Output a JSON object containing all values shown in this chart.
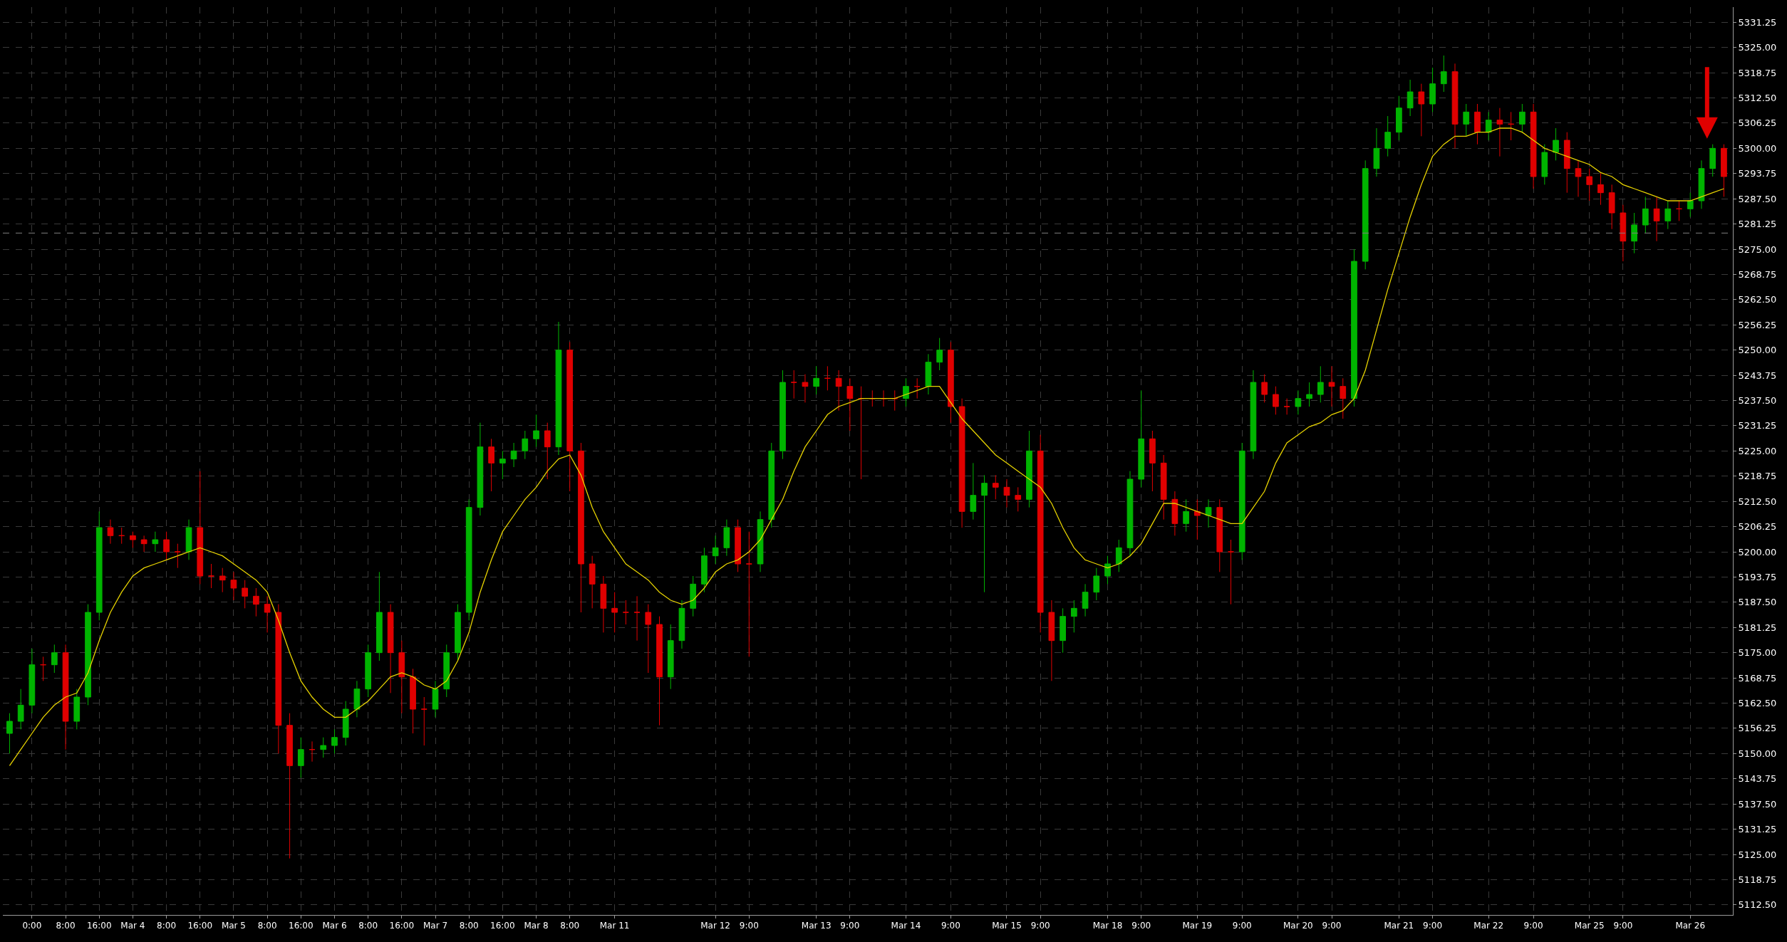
{
  "chart_data": {
    "type": "candlestick",
    "categories": [
      null,
      null,
      "0:00",
      null,
      null,
      "8:00",
      null,
      null,
      "16:00",
      null,
      null,
      "Mar 4",
      null,
      null,
      "8:00",
      null,
      null,
      "16:00",
      null,
      null,
      "Mar 5",
      null,
      null,
      "8:00",
      null,
      null,
      "16:00",
      null,
      null,
      "Mar 6",
      null,
      null,
      "8:00",
      null,
      null,
      "16:00",
      null,
      null,
      "Mar 7",
      null,
      null,
      "8:00",
      null,
      null,
      "16:00",
      null,
      null,
      "Mar 8",
      null,
      null,
      "8:00",
      null,
      null,
      null,
      "Mar 11",
      null,
      null,
      null,
      null,
      null,
      null,
      null,
      null,
      "Mar 12",
      null,
      null,
      "9:00",
      null,
      null,
      null,
      null,
      null,
      "Mar 13",
      null,
      null,
      "9:00",
      null,
      null,
      null,
      null,
      "Mar 14",
      null,
      null,
      null,
      "9:00",
      null,
      null,
      null,
      null,
      "Mar 15",
      null,
      null,
      "9:00",
      null,
      null,
      null,
      null,
      null,
      "Mar 18",
      null,
      null,
      "9:00",
      null,
      null,
      null,
      null,
      "Mar 19",
      null,
      null,
      null,
      "9:00",
      null,
      null,
      null,
      null,
      "Mar 20",
      null,
      null,
      "9:00",
      null,
      null,
      null,
      null,
      null,
      "Mar 21",
      null,
      null,
      "9:00",
      null,
      null,
      null,
      null,
      "Mar 22",
      null,
      null,
      null,
      "9:00",
      null,
      null,
      null,
      null,
      "Mar 25",
      null,
      null,
      "9:00",
      null,
      null,
      null,
      null,
      null,
      "Mar 26",
      null,
      null,
      null
    ],
    "series": [
      {
        "type": "line",
        "color": "#e6d200",
        "values": [
          5147,
          5151,
          5155,
          5159,
          5162,
          5164,
          5165,
          5170,
          5178,
          5185,
          5190,
          5194,
          5196,
          5197,
          5198,
          5199,
          5200,
          5201,
          5200,
          5199,
          5197,
          5195,
          5193,
          5190,
          5183,
          5175,
          5168,
          5164,
          5161,
          5159,
          5159,
          5161,
          5163,
          5166,
          5169,
          5170,
          5169,
          5167,
          5166,
          5168,
          5173,
          5180,
          5190,
          5198,
          5205,
          5209,
          5213,
          5216,
          5220,
          5223,
          5224,
          5219,
          5211,
          5205,
          5201,
          5197,
          5195,
          5193,
          5190,
          5188,
          5187,
          5188,
          5191,
          5195,
          5197,
          5198,
          5200,
          5203,
          5208,
          5213,
          5220,
          5226,
          5230,
          5234,
          5236,
          5237,
          5238,
          5238,
          5238,
          5238,
          5239,
          5240,
          5241,
          5241,
          5237,
          5233,
          5230,
          5227,
          5224,
          5222,
          5220,
          5218,
          5216,
          5212,
          5206,
          5201,
          5198,
          5197,
          5196,
          5197,
          5199,
          5202,
          5207,
          5212,
          5212,
          5211,
          5210,
          5209,
          5208,
          5207,
          5207,
          5211,
          5215,
          5222,
          5227,
          5229,
          5231,
          5232,
          5234,
          5235,
          5238,
          5245,
          5255,
          5265,
          5274,
          5283,
          5291,
          5298,
          5301,
          5303,
          5303,
          5304,
          5304,
          5305,
          5305,
          5304,
          5302,
          5300,
          5299,
          5298,
          5297,
          5296,
          5294,
          5293,
          5291,
          5290,
          5289,
          5288,
          5287,
          5287,
          5287,
          5288,
          5289,
          5290
        ]
      },
      {
        "type": "candlestick",
        "colors": [
          "#00b400",
          "#00b400",
          "#00b400",
          "#e00000",
          "#00b400",
          "#e00000",
          "#00b400",
          "#00b400",
          "#00b400",
          "#e00000",
          "#e00000",
          "#e00000",
          "#e00000",
          "#00b400",
          "#e00000",
          "#e00000",
          "#00b400",
          "#e00000",
          "#e00000",
          "#e00000",
          "#e00000",
          "#e00000",
          "#e00000",
          "#e00000",
          "#e00000",
          "#e00000",
          "#00b400",
          "#e00000",
          "#00b400",
          "#00b400",
          "#00b400",
          "#00b400",
          "#00b400",
          "#00b400",
          "#e00000",
          "#e00000",
          "#e00000",
          "#e00000",
          "#00b400",
          "#00b400",
          "#00b400",
          "#00b400",
          "#00b400",
          "#e00000",
          "#00b400",
          "#00b400",
          "#00b400",
          "#00b400",
          "#e00000",
          "#00b400",
          "#e00000",
          "#e00000",
          "#e00000",
          "#e00000",
          "#e00000",
          "#e00000",
          "#e00000",
          "#e00000",
          "#e00000",
          "#00b400",
          "#00b400",
          "#00b400",
          "#00b400",
          "#00b400",
          "#00b400",
          "#e00000",
          "#e00000",
          "#00b400",
          "#00b400",
          "#00b400",
          "#e00000",
          "#e00000",
          "#00b400",
          "#e00000",
          "#e00000",
          "#e00000",
          "#e00000",
          "#e00000",
          "#e00000",
          "#e00000",
          "#00b400",
          "#e00000",
          "#00b400",
          "#00b400",
          "#e00000",
          "#e00000",
          "#00b400",
          "#00b400",
          "#e00000",
          "#e00000",
          "#e00000",
          "#00b400",
          "#e00000",
          "#e00000",
          "#00b400",
          "#00b400",
          "#00b400",
          "#00b400",
          "#00b400",
          "#00b400",
          "#00b400",
          "#00b400",
          "#e00000",
          "#e00000",
          "#e00000",
          "#00b400",
          "#e00000",
          "#00b400",
          "#e00000",
          "#e00000",
          "#00b400",
          "#00b400",
          "#e00000",
          "#e00000",
          "#e00000",
          "#00b400",
          "#00b400",
          "#00b400",
          "#e00000",
          "#e00000",
          "#00b400",
          "#00b400",
          "#00b400",
          "#00b400",
          "#00b400",
          "#00b400",
          "#e00000",
          "#00b400",
          "#00b400",
          "#e00000",
          "#00b400",
          "#e00000",
          "#00b400",
          "#e00000",
          "#e00000",
          "#00b400",
          "#e00000",
          "#00b400",
          "#00b400",
          "#e00000",
          "#e00000",
          "#e00000",
          "#e00000",
          "#e00000",
          "#e00000",
          "#00b400",
          "#00b400",
          "#e00000",
          "#00b400",
          "#e00000",
          "#00b400",
          "#00b400",
          "#00b400",
          "#e00000"
        ],
        "ohlc": [
          [
            5155,
            5160,
            5150,
            5158
          ],
          [
            5158,
            5166,
            5156,
            5162
          ],
          [
            5162,
            5176,
            5160,
            5172
          ],
          [
            5172,
            5174,
            5168,
            5172
          ],
          [
            5172,
            5177,
            5170,
            5175
          ],
          [
            5175,
            5177,
            5151,
            5158
          ],
          [
            5158,
            5166,
            5156,
            5164
          ],
          [
            5164,
            5187,
            5162,
            5185
          ],
          [
            5185,
            5210,
            5183,
            5206
          ],
          [
            5206,
            5208,
            5202,
            5204
          ],
          [
            5204,
            5206,
            5202,
            5204
          ],
          [
            5204,
            5205,
            5201,
            5203
          ],
          [
            5203,
            5204,
            5200,
            5202
          ],
          [
            5202,
            5205,
            5200,
            5203
          ],
          [
            5203,
            5205,
            5198,
            5200
          ],
          [
            5200,
            5202,
            5196,
            5200
          ],
          [
            5200,
            5208,
            5198,
            5206
          ],
          [
            5206,
            5220,
            5192,
            5194
          ],
          [
            5194,
            5197,
            5191,
            5194
          ],
          [
            5194,
            5196,
            5190,
            5193
          ],
          [
            5193,
            5195,
            5188,
            5191
          ],
          [
            5191,
            5193,
            5186,
            5189
          ],
          [
            5189,
            5191,
            5184,
            5187
          ],
          [
            5187,
            5189,
            5180,
            5185
          ],
          [
            5185,
            5187,
            5150,
            5157
          ],
          [
            5157,
            5160,
            5124,
            5147
          ],
          [
            5147,
            5154,
            5144,
            5151
          ],
          [
            5151,
            5153,
            5148,
            5151
          ],
          [
            5151,
            5154,
            5149,
            5152
          ],
          [
            5152,
            5156,
            5150,
            5154
          ],
          [
            5154,
            5163,
            5152,
            5161
          ],
          [
            5161,
            5168,
            5159,
            5166
          ],
          [
            5166,
            5177,
            5164,
            5175
          ],
          [
            5175,
            5195,
            5173,
            5185
          ],
          [
            5185,
            5187,
            5165,
            5175
          ],
          [
            5175,
            5178,
            5160,
            5169
          ],
          [
            5169,
            5171,
            5155,
            5161
          ],
          [
            5161,
            5164,
            5152,
            5161
          ],
          [
            5161,
            5168,
            5159,
            5166
          ],
          [
            5166,
            5177,
            5164,
            5175
          ],
          [
            5175,
            5187,
            5173,
            5185
          ],
          [
            5185,
            5213,
            5183,
            5211
          ],
          [
            5211,
            5232,
            5209,
            5226
          ],
          [
            5226,
            5228,
            5215,
            5222
          ],
          [
            5222,
            5225,
            5218,
            5223
          ],
          [
            5223,
            5227,
            5221,
            5225
          ],
          [
            5225,
            5230,
            5223,
            5228
          ],
          [
            5228,
            5234,
            5226,
            5230
          ],
          [
            5230,
            5232,
            5218,
            5226
          ],
          [
            5226,
            5257,
            5224,
            5250
          ],
          [
            5250,
            5252,
            5215,
            5225
          ],
          [
            5225,
            5227,
            5185,
            5197
          ],
          [
            5197,
            5199,
            5186,
            5192
          ],
          [
            5192,
            5194,
            5180,
            5186
          ],
          [
            5186,
            5190,
            5180,
            5185
          ],
          [
            5185,
            5188,
            5182,
            5185
          ],
          [
            5185,
            5189,
            5178,
            5185
          ],
          [
            5185,
            5187,
            5170,
            5182
          ],
          [
            5182,
            5184,
            5157,
            5169
          ],
          [
            5169,
            5182,
            5166,
            5178
          ],
          [
            5178,
            5188,
            5176,
            5186
          ],
          [
            5186,
            5194,
            5184,
            5192
          ],
          [
            5192,
            5201,
            5190,
            5199
          ],
          [
            5199,
            5204,
            5197,
            5201
          ],
          [
            5201,
            5208,
            5199,
            5206
          ],
          [
            5206,
            5208,
            5195,
            5197
          ],
          [
            5197,
            5205,
            5174,
            5197
          ],
          [
            5197,
            5210,
            5195,
            5208
          ],
          [
            5208,
            5227,
            5206,
            5225
          ],
          [
            5225,
            5245,
            5223,
            5242
          ],
          [
            5242,
            5245,
            5238,
            5242
          ],
          [
            5242,
            5244,
            5237,
            5241
          ],
          [
            5241,
            5246,
            5239,
            5243
          ],
          [
            5243,
            5246,
            5240,
            5243
          ],
          [
            5243,
            5245,
            5235,
            5241
          ],
          [
            5241,
            5243,
            5230,
            5238
          ],
          [
            5238,
            5241,
            5218,
            5238
          ],
          [
            5238,
            5240,
            5236,
            5238
          ],
          [
            5238,
            5240,
            5236,
            5238
          ],
          [
            5238,
            5240,
            5235,
            5238
          ],
          [
            5238,
            5243,
            5236,
            5241
          ],
          [
            5241,
            5243,
            5238,
            5241
          ],
          [
            5241,
            5249,
            5239,
            5247
          ],
          [
            5247,
            5253,
            5245,
            5250
          ],
          [
            5250,
            5252,
            5232,
            5236
          ],
          [
            5236,
            5238,
            5206,
            5210
          ],
          [
            5210,
            5222,
            5208,
            5214
          ],
          [
            5214,
            5219,
            5190,
            5217
          ],
          [
            5217,
            5219,
            5213,
            5216
          ],
          [
            5216,
            5218,
            5211,
            5214
          ],
          [
            5214,
            5216,
            5210,
            5213
          ],
          [
            5213,
            5230,
            5211,
            5225
          ],
          [
            5225,
            5229,
            5180,
            5185
          ],
          [
            5185,
            5188,
            5168,
            5178
          ],
          [
            5178,
            5186,
            5175,
            5184
          ],
          [
            5184,
            5188,
            5180,
            5186
          ],
          [
            5186,
            5192,
            5184,
            5190
          ],
          [
            5190,
            5196,
            5188,
            5194
          ],
          [
            5194,
            5199,
            5192,
            5197
          ],
          [
            5197,
            5203,
            5195,
            5201
          ],
          [
            5201,
            5220,
            5199,
            5218
          ],
          [
            5218,
            5240,
            5216,
            5228
          ],
          [
            5228,
            5230,
            5215,
            5222
          ],
          [
            5222,
            5224,
            5208,
            5213
          ],
          [
            5213,
            5215,
            5204,
            5207
          ],
          [
            5207,
            5213,
            5205,
            5210
          ],
          [
            5210,
            5213,
            5203,
            5209
          ],
          [
            5209,
            5213,
            5206,
            5211
          ],
          [
            5211,
            5213,
            5195,
            5200
          ],
          [
            5200,
            5203,
            5187,
            5200
          ],
          [
            5200,
            5227,
            5198,
            5225
          ],
          [
            5225,
            5245,
            5223,
            5242
          ],
          [
            5242,
            5244,
            5237,
            5239
          ],
          [
            5239,
            5241,
            5234,
            5236
          ],
          [
            5236,
            5238,
            5234,
            5236
          ],
          [
            5236,
            5240,
            5234,
            5238
          ],
          [
            5238,
            5242,
            5236,
            5239
          ],
          [
            5239,
            5246,
            5237,
            5242
          ],
          [
            5242,
            5246,
            5236,
            5241
          ],
          [
            5241,
            5243,
            5233,
            5238
          ],
          [
            5238,
            5275,
            5236,
            5272
          ],
          [
            5272,
            5297,
            5270,
            5295
          ],
          [
            5295,
            5305,
            5293,
            5300
          ],
          [
            5300,
            5308,
            5298,
            5304
          ],
          [
            5304,
            5313,
            5302,
            5310
          ],
          [
            5310,
            5317,
            5308,
            5314
          ],
          [
            5314,
            5316,
            5303,
            5311
          ],
          [
            5311,
            5320,
            5309,
            5316
          ],
          [
            5316,
            5323,
            5314,
            5319
          ],
          [
            5319,
            5321,
            5300,
            5306
          ],
          [
            5306,
            5311,
            5303,
            5309
          ],
          [
            5309,
            5311,
            5301,
            5304
          ],
          [
            5304,
            5309,
            5302,
            5307
          ],
          [
            5307,
            5310,
            5298,
            5306
          ],
          [
            5306,
            5309,
            5302,
            5306
          ],
          [
            5306,
            5311,
            5304,
            5309
          ],
          [
            5309,
            5311,
            5290,
            5293
          ],
          [
            5293,
            5301,
            5291,
            5299
          ],
          [
            5299,
            5305,
            5297,
            5302
          ],
          [
            5302,
            5304,
            5289,
            5295
          ],
          [
            5295,
            5297,
            5288,
            5293
          ],
          [
            5293,
            5295,
            5287,
            5291
          ],
          [
            5291,
            5294,
            5286,
            5289
          ],
          [
            5289,
            5291,
            5280,
            5284
          ],
          [
            5284,
            5286,
            5272,
            5277
          ],
          [
            5277,
            5284,
            5274,
            5281
          ],
          [
            5281,
            5288,
            5279,
            5285
          ],
          [
            5285,
            5288,
            5277,
            5282
          ],
          [
            5282,
            5287,
            5280,
            5285
          ],
          [
            5285,
            5287,
            5282,
            5285
          ],
          [
            5285,
            5289,
            5283,
            5287
          ],
          [
            5287,
            5297,
            5285,
            5295
          ],
          [
            5295,
            5301,
            5293,
            5300
          ],
          [
            5300,
            5301,
            5288,
            5293
          ]
        ]
      }
    ],
    "ylim": [
      5110,
      5335
    ],
    "yticks": [
      {
        "value": 5112.5,
        "label": "5112.50"
      },
      {
        "value": 5118.75,
        "label": "5118.75"
      },
      {
        "value": 5125,
        "label": "5125.00"
      },
      {
        "value": 5131.25,
        "label": "5131.25"
      },
      {
        "value": 5137.5,
        "label": "5137.50"
      },
      {
        "value": 5143.75,
        "label": "5143.75"
      },
      {
        "value": 5150,
        "label": "5150.00"
      },
      {
        "value": 5156.25,
        "label": "5156.25"
      },
      {
        "value": 5162.5,
        "label": "5162.50"
      },
      {
        "value": 5168.75,
        "label": "5168.75"
      },
      {
        "value": 5175,
        "label": "5175.00"
      },
      {
        "value": 5181.25,
        "label": "5181.25"
      },
      {
        "value": 5187.5,
        "label": "5187.50"
      },
      {
        "value": 5193.75,
        "label": "5193.75"
      },
      {
        "value": 5200,
        "label": "5200.00"
      },
      {
        "value": 5206.25,
        "label": "5206.25"
      },
      {
        "value": 5212.5,
        "label": "5212.50"
      },
      {
        "value": 5218.75,
        "label": "5218.75"
      },
      {
        "value": 5225,
        "label": "5225.00"
      },
      {
        "value": 5231.25,
        "label": "5231.25"
      },
      {
        "value": 5237.5,
        "label": "5237.50"
      },
      {
        "value": 5243.75,
        "label": "5243.75"
      },
      {
        "value": 5250,
        "label": "5250.00"
      },
      {
        "value": 5256.25,
        "label": "5256.25"
      },
      {
        "value": 5262.5,
        "label": "5262.50"
      },
      {
        "value": 5268.75,
        "label": "5268.75"
      },
      {
        "value": 5275,
        "label": "5275.00"
      },
      {
        "value": 5281.25,
        "label": "5281.25"
      },
      {
        "value": 5287.5,
        "label": "5287.50"
      },
      {
        "value": 5293.75,
        "label": "5293.75"
      },
      {
        "value": 5300,
        "label": "5300.00"
      },
      {
        "value": 5306.25,
        "label": "5306.25"
      },
      {
        "value": 5312.5,
        "label": "5312.50"
      },
      {
        "value": 5318.75,
        "label": "5318.75"
      },
      {
        "value": 5325,
        "label": "5325.00"
      },
      {
        "value": 5331.25,
        "label": "5331.25"
      }
    ],
    "ref_lines": [
      {
        "axis": "y",
        "value": 5279,
        "color": "#808080",
        "line_style": "dashed"
      }
    ],
    "grid": true
  }
}
